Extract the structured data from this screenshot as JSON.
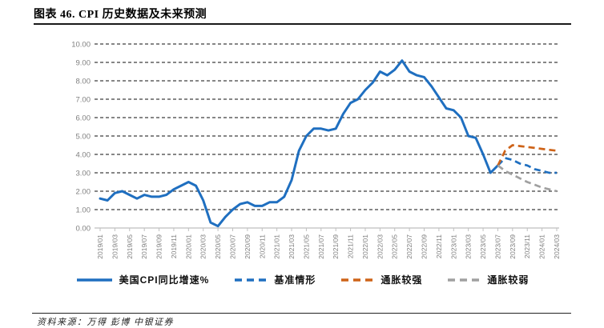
{
  "figure": {
    "title": "图表 46. CPI 历史数据及未来预测",
    "source": "资料来源：万得 彭博 中银证券"
  },
  "chart_data": {
    "type": "line",
    "title": "CPI 历史数据及未来预测",
    "xlabel": "",
    "ylabel": "",
    "ylim": [
      0,
      10
    ],
    "y_tick_step": 1,
    "y_tick_labels": [
      "0.00",
      "1.00",
      "2.00",
      "3.00",
      "4.00",
      "5.00",
      "6.00",
      "7.00",
      "8.00",
      "9.00",
      "10.00"
    ],
    "grid": "horizontal-dashed",
    "legend_position": "bottom",
    "months_total": 63,
    "x_tick_every_n_months": 2,
    "x_tick_labels": [
      "2019/01",
      "2019/03",
      "2019/05",
      "2019/07",
      "2019/09",
      "2019/11",
      "2020/01",
      "2020/03",
      "2020/05",
      "2020/07",
      "2020/09",
      "2020/11",
      "2021/01",
      "2021/03",
      "2021/05",
      "2021/07",
      "2021/09",
      "2021/11",
      "2022/01",
      "2022/03",
      "2022/05",
      "2022/07",
      "2022/09",
      "2022/11",
      "2023/01",
      "2023/03",
      "2023/05",
      "2023/07",
      "2023/09",
      "2023/11",
      "2024/01",
      "2024/03"
    ],
    "series": [
      {
        "name": "美国CPI同比增速%",
        "style": "solid",
        "color": "#1F6FC0",
        "start_index": 0,
        "x_start": "2019/01",
        "x_end": "2023/07",
        "values": [
          1.6,
          1.5,
          1.9,
          2.0,
          1.8,
          1.6,
          1.8,
          1.7,
          1.7,
          1.8,
          2.1,
          2.3,
          2.5,
          2.3,
          1.5,
          0.3,
          0.1,
          0.6,
          1.0,
          1.3,
          1.4,
          1.2,
          1.2,
          1.4,
          1.4,
          1.7,
          2.6,
          4.2,
          5.0,
          5.4,
          5.4,
          5.3,
          5.4,
          6.2,
          6.8,
          7.0,
          7.5,
          7.9,
          8.5,
          8.3,
          8.6,
          9.1,
          8.5,
          8.3,
          8.2,
          7.7,
          7.1,
          6.5,
          6.4,
          6.0,
          5.0,
          4.9,
          4.0,
          3.0,
          3.4
        ]
      },
      {
        "name": "基准情形",
        "style": "dashed",
        "color": "#1F6FC0",
        "start_index": 54,
        "x_start": "2023/07",
        "x_end": "2024/03",
        "values": [
          3.4,
          3.8,
          3.7,
          3.5,
          3.4,
          3.2,
          3.1,
          3.0,
          3.0
        ]
      },
      {
        "name": "通胀较强",
        "style": "dashed",
        "color": "#CE6318",
        "start_index": 54,
        "x_start": "2023/07",
        "x_end": "2024/03",
        "values": [
          3.4,
          4.2,
          4.5,
          4.45,
          4.4,
          4.35,
          4.3,
          4.25,
          4.2
        ]
      },
      {
        "name": "通胀较弱",
        "style": "dashed",
        "color": "#A0A0A0",
        "start_index": 54,
        "x_start": "2023/07",
        "x_end": "2024/03",
        "values": [
          3.4,
          3.1,
          2.9,
          2.7,
          2.5,
          2.35,
          2.2,
          2.1,
          2.0
        ]
      }
    ],
    "axis_colors": {
      "grid_line": "#3d3d3d",
      "axis_line": "#bfbfbf",
      "tick_label": "#7f7f7f"
    }
  }
}
